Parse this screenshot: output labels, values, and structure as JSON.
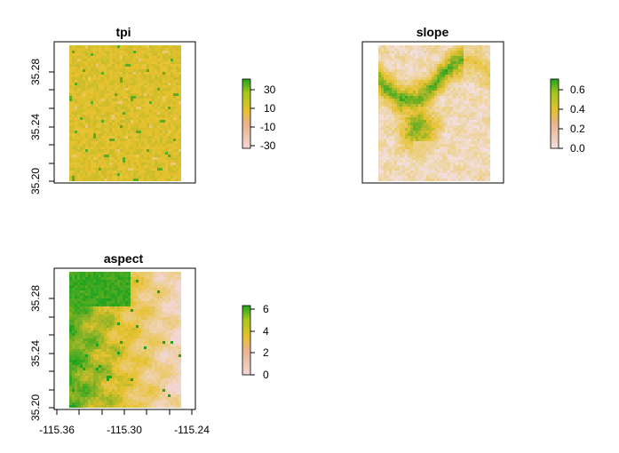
{
  "chart_data": [
    {
      "type": "heatmap",
      "title": "tpi",
      "xlabel": "",
      "ylabel": "",
      "ylim": [
        35.2,
        35.3
      ],
      "y_ticks": [
        "35.20",
        "35.24",
        "35.28"
      ],
      "x_axis_visible": false,
      "grid": false,
      "legend_position": "right",
      "legend_range": [
        -38,
        38
      ],
      "legend_ticks": [
        "30",
        "10",
        "-10",
        "-30"
      ],
      "colors": {
        "low": "#f2d6d6",
        "mid": "#e6c12c",
        "high": "#1fa31f"
      },
      "texture": "fine drainage-network pattern, mostly mid values near 0"
    },
    {
      "type": "heatmap",
      "title": "slope",
      "xlabel": "",
      "ylabel": "",
      "axes_visible": false,
      "grid": false,
      "legend_position": "right",
      "legend_range": [
        0,
        0.7
      ],
      "legend_ticks": [
        "0.6",
        "0.4",
        "0.2",
        "0.0"
      ],
      "colors": {
        "low": "#f2dedc",
        "mid": "#e6c12c",
        "high": "#1fa31f"
      },
      "texture": "steep ridges in upper left and center, flat pink elsewhere"
    },
    {
      "type": "heatmap",
      "title": "aspect",
      "xlabel": "",
      "ylabel": "",
      "xlim": [
        -115.365,
        -115.235
      ],
      "ylim": [
        35.2,
        35.3
      ],
      "x_ticks": [
        "-115.36",
        "-115.30",
        "-115.24"
      ],
      "y_ticks": [
        "35.20",
        "35.24",
        "35.28"
      ],
      "grid": false,
      "legend_position": "right",
      "legend_range": [
        0,
        6.28
      ],
      "legend_ticks": [
        "6",
        "4",
        "2",
        "0"
      ],
      "colors": {
        "low": "#f2d6d6",
        "mid": "#e6c12c",
        "high": "#1fa31f"
      },
      "texture": "green slopes on the left, yellow center, pink on the right"
    }
  ]
}
